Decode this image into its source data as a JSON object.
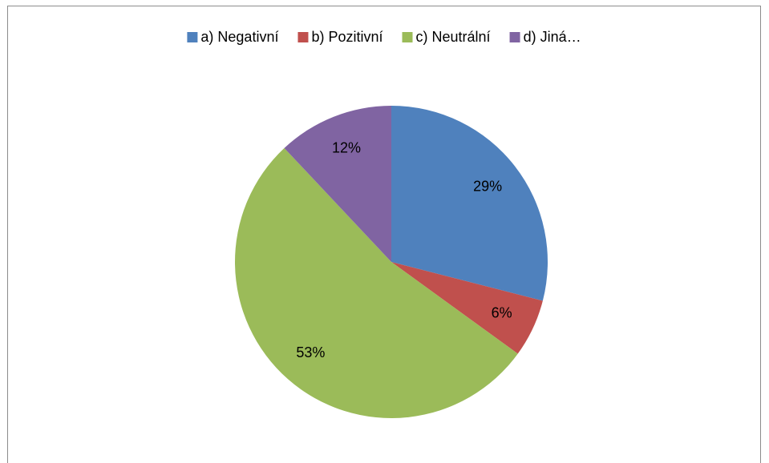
{
  "chart_data": {
    "type": "pie",
    "categories": [
      "a) Negativní",
      "b) Pozitivní",
      "c) Neutrální",
      "d) Jiná…"
    ],
    "values": [
      29,
      6,
      53,
      12
    ],
    "value_labels": [
      "29%",
      "6%",
      "53%",
      "12%"
    ],
    "colors": [
      "#4f81bd",
      "#c0504d",
      "#9bbb59",
      "#8064a2"
    ],
    "legend": "top"
  }
}
